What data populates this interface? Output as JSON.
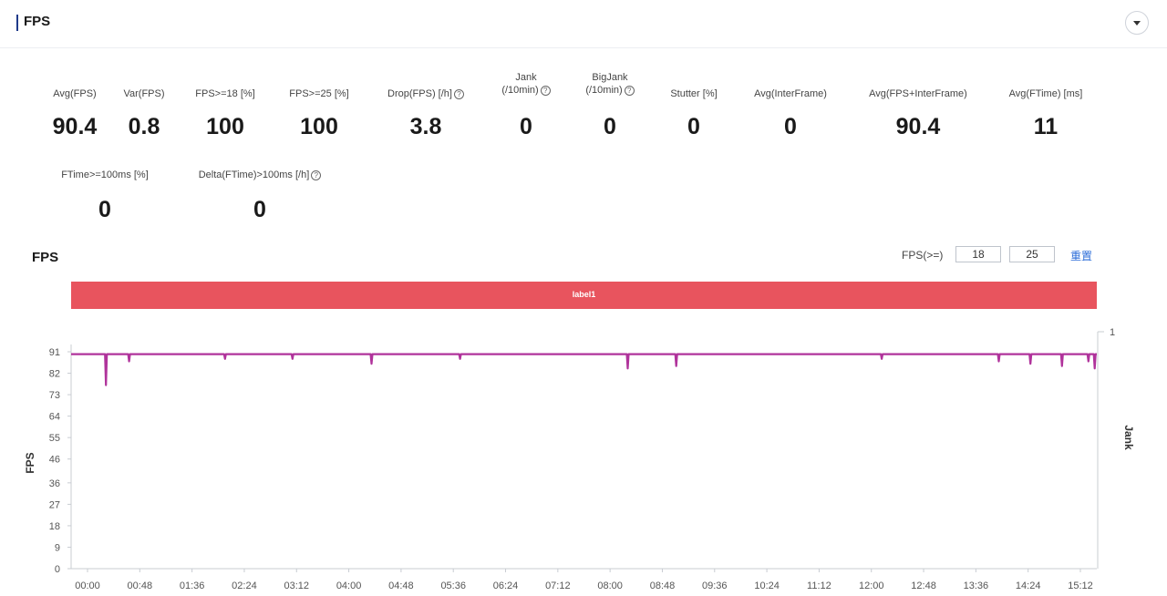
{
  "header": {
    "title": "FPS"
  },
  "stats_row1": [
    {
      "label": "Avg(FPS)",
      "value": "90.4"
    },
    {
      "label": "Var(FPS)",
      "value": "0.8"
    },
    {
      "label": "FPS>=18 [%]",
      "value": "100"
    },
    {
      "label": "FPS>=25 [%]",
      "value": "100"
    },
    {
      "label": "Drop(FPS) [/h]",
      "value": "3.8"
    },
    {
      "label": "Jank",
      "label2": "(/10min)",
      "value": "0"
    },
    {
      "label": "BigJank",
      "label2": "(/10min)",
      "value": "0"
    },
    {
      "label": "Stutter [%]",
      "value": "0"
    },
    {
      "label": "Avg(InterFrame)",
      "value": "0"
    },
    {
      "label": "Avg(FPS+InterFrame)",
      "value": "90.4"
    },
    {
      "label": "Avg(FTime) [ms]",
      "value": "11"
    }
  ],
  "stats_row2": [
    {
      "label": "FTime>=100ms [%]",
      "value": "0"
    },
    {
      "label": "Delta(FTime)>100ms [/h]",
      "value": "0"
    }
  ],
  "chart_section": {
    "title": "FPS",
    "threshold_label": "FPS(>=)",
    "threshold_low": "18",
    "threshold_high": "25",
    "reset_label": "重置",
    "label_bar_text": "label1",
    "label_bar_color": "#e8545e"
  },
  "chart_data": {
    "type": "line",
    "ylabel": "FPS",
    "y2label": "Jank",
    "ylim": [
      0,
      91
    ],
    "y_ticks": [
      0,
      9,
      18,
      27,
      36,
      46,
      55,
      64,
      73,
      82,
      91
    ],
    "y2_ticks": [
      1
    ],
    "x_ticks": [
      "00:00",
      "00:48",
      "01:36",
      "02:24",
      "03:12",
      "04:00",
      "04:48",
      "05:36",
      "06:24",
      "07:12",
      "08:00",
      "08:48",
      "09:36",
      "10:24",
      "11:12",
      "12:00",
      "12:48",
      "13:36",
      "14:24",
      "15:12"
    ],
    "x_range_seconds": [
      0,
      973
    ],
    "series": [
      {
        "color": "#b0339b",
        "baseline": 90,
        "dips": [
          {
            "t": 33,
            "fps": 77
          },
          {
            "t": 55,
            "fps": 87
          },
          {
            "t": 146,
            "fps": 88
          },
          {
            "t": 210,
            "fps": 88
          },
          {
            "t": 285,
            "fps": 86
          },
          {
            "t": 369,
            "fps": 88
          },
          {
            "t": 528,
            "fps": 84
          },
          {
            "t": 574,
            "fps": 85
          },
          {
            "t": 769,
            "fps": 88
          },
          {
            "t": 880,
            "fps": 87
          },
          {
            "t": 910,
            "fps": 86
          },
          {
            "t": 940,
            "fps": 85
          },
          {
            "t": 965,
            "fps": 87
          },
          {
            "t": 971,
            "fps": 84
          }
        ]
      }
    ]
  }
}
